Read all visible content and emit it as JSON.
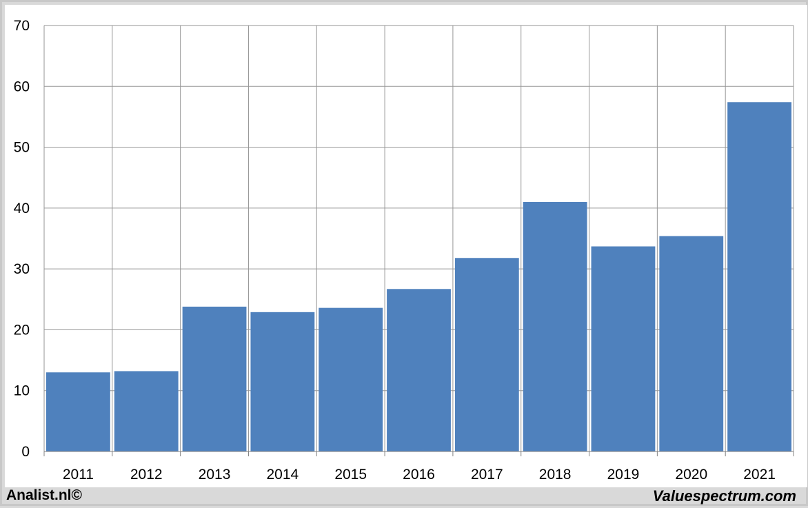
{
  "footer": {
    "left_text": "Analist.nl©",
    "right_text": "Valuespectrum.com"
  },
  "chart_data": {
    "type": "bar",
    "categories": [
      "2011",
      "2012",
      "2013",
      "2014",
      "2015",
      "2016",
      "2017",
      "2018",
      "2019",
      "2020",
      "2021"
    ],
    "values": [
      13.0,
      13.2,
      23.8,
      22.9,
      23.6,
      26.7,
      31.8,
      41.0,
      33.7,
      35.4,
      57.4
    ],
    "ylim": [
      0,
      70
    ],
    "yticks": [
      0,
      10,
      20,
      30,
      40,
      50,
      60,
      70
    ],
    "grid": true,
    "bar_color": "#4f81bd",
    "grid_color": "#969696",
    "title": "",
    "xlabel": "",
    "ylabel": ""
  }
}
